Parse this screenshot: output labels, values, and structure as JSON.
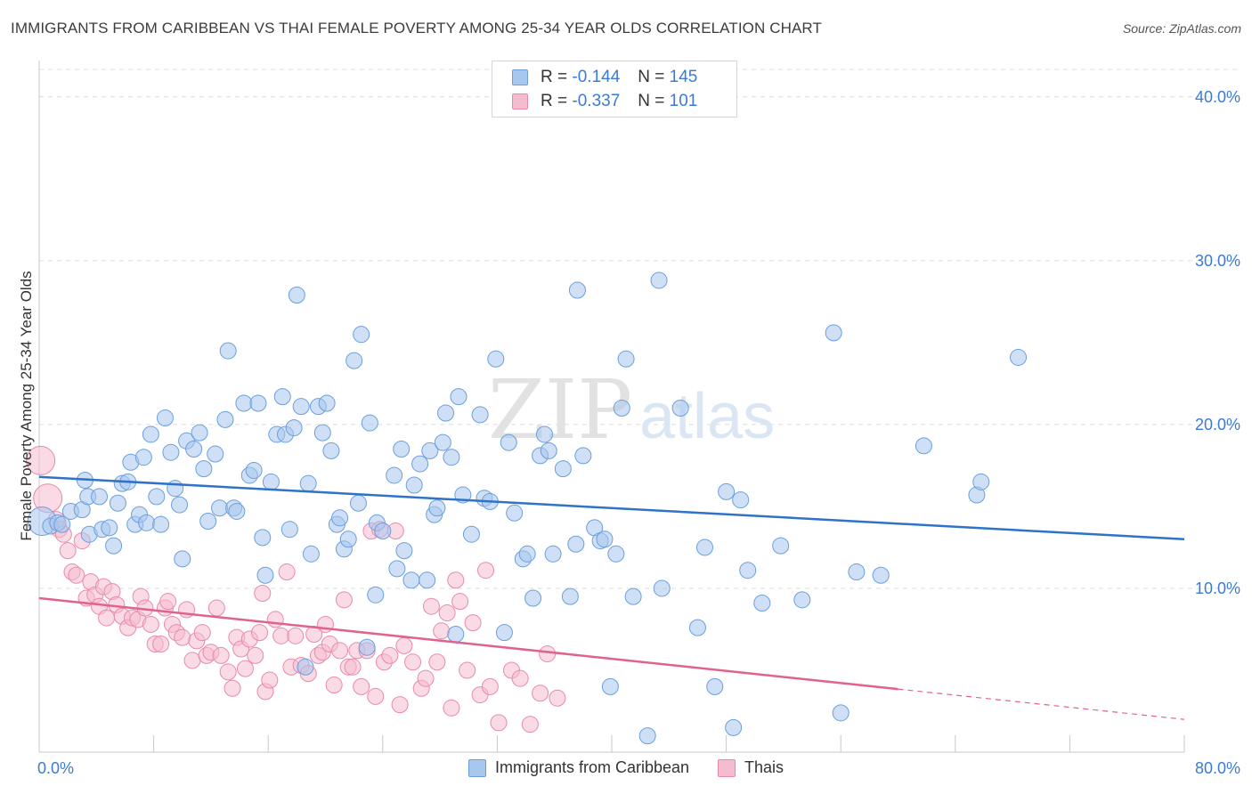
{
  "title": "IMMIGRANTS FROM CARIBBEAN VS THAI FEMALE POVERTY AMONG 25-34 YEAR OLDS CORRELATION CHART",
  "source": "Source: ZipAtlas.com",
  "watermark": {
    "zip": "ZIP",
    "atlas": "atlas"
  },
  "legend_top": [
    {
      "r_label": "R =",
      "r_value": "-0.144",
      "n_label": "N =",
      "n_value": "145"
    },
    {
      "r_label": "R =",
      "r_value": "-0.337",
      "n_label": "N =",
      "n_value": "101"
    }
  ],
  "colors": {
    "blue_fill": "#a7c7ee",
    "blue_stroke": "#6a9fdc",
    "blue_line": "#2f72c9",
    "pink_fill": "#f5bcd0",
    "pink_stroke": "#e88aab",
    "pink_line": "#e0628f",
    "axis_text": "#3a7bd5",
    "grid": "#dcdcdc"
  },
  "chart_data": {
    "type": "scatter",
    "title": "IMMIGRANTS FROM CARIBBEAN VS THAI FEMALE POVERTY AMONG 25-34 YEAR OLDS CORRELATION CHART",
    "xlabel": "",
    "ylabel": "Female Poverty Among 25-34 Year Olds",
    "xlim": [
      0,
      80
    ],
    "ylim": [
      0,
      42
    ],
    "x_tick_labels": [
      "0.0%",
      "80.0%"
    ],
    "y_ticks": [
      10,
      20,
      30,
      40
    ],
    "y_tick_labels": [
      "10.0%",
      "20.0%",
      "30.0%",
      "40.0%"
    ],
    "grid": true,
    "legend_placement": "bottom",
    "series": [
      {
        "name": "Immigrants from Caribbean",
        "r": -0.144,
        "n": 145,
        "trend": {
          "x": [
            0,
            80
          ],
          "y": [
            16.8,
            13.0
          ],
          "dashed_from": null
        },
        "points": [
          [
            0.2,
            14.1
          ],
          [
            0.8,
            13.8
          ],
          [
            1.3,
            14.0
          ],
          [
            1.6,
            13.9
          ],
          [
            2.2,
            14.7
          ],
          [
            3.0,
            14.8
          ],
          [
            3.2,
            16.6
          ],
          [
            3.5,
            13.3
          ],
          [
            3.4,
            15.6
          ],
          [
            4.2,
            15.6
          ],
          [
            4.4,
            13.6
          ],
          [
            4.9,
            13.7
          ],
          [
            5.2,
            12.6
          ],
          [
            5.5,
            15.2
          ],
          [
            5.8,
            16.4
          ],
          [
            6.2,
            16.5
          ],
          [
            6.4,
            17.7
          ],
          [
            6.7,
            13.9
          ],
          [
            7.0,
            14.5
          ],
          [
            7.3,
            18.0
          ],
          [
            7.5,
            14.0
          ],
          [
            7.8,
            19.4
          ],
          [
            8.2,
            15.6
          ],
          [
            8.5,
            13.9
          ],
          [
            8.8,
            20.4
          ],
          [
            9.2,
            18.3
          ],
          [
            9.5,
            16.1
          ],
          [
            9.8,
            15.1
          ],
          [
            10.0,
            11.8
          ],
          [
            10.3,
            19.0
          ],
          [
            10.8,
            18.5
          ],
          [
            11.2,
            19.5
          ],
          [
            11.5,
            17.3
          ],
          [
            11.8,
            14.1
          ],
          [
            12.3,
            18.2
          ],
          [
            12.6,
            14.9
          ],
          [
            13.0,
            20.3
          ],
          [
            13.2,
            24.5
          ],
          [
            13.6,
            14.9
          ],
          [
            13.8,
            14.7
          ],
          [
            14.3,
            21.3
          ],
          [
            14.7,
            16.9
          ],
          [
            15.0,
            17.2
          ],
          [
            15.3,
            21.3
          ],
          [
            15.6,
            13.1
          ],
          [
            15.8,
            10.8
          ],
          [
            16.2,
            16.5
          ],
          [
            16.6,
            19.4
          ],
          [
            17.0,
            21.7
          ],
          [
            17.2,
            19.4
          ],
          [
            17.5,
            13.6
          ],
          [
            17.8,
            19.8
          ],
          [
            18.0,
            27.9
          ],
          [
            18.3,
            21.1
          ],
          [
            18.6,
            5.2
          ],
          [
            18.8,
            16.4
          ],
          [
            19.0,
            12.1
          ],
          [
            19.5,
            21.1
          ],
          [
            19.8,
            19.5
          ],
          [
            20.1,
            21.3
          ],
          [
            20.4,
            18.4
          ],
          [
            20.8,
            13.9
          ],
          [
            21.0,
            14.3
          ],
          [
            21.3,
            12.4
          ],
          [
            21.6,
            13.0
          ],
          [
            22.0,
            23.9
          ],
          [
            22.3,
            15.2
          ],
          [
            22.5,
            25.5
          ],
          [
            22.9,
            6.4
          ],
          [
            23.1,
            20.1
          ],
          [
            23.5,
            9.6
          ],
          [
            23.6,
            14.0
          ],
          [
            24.0,
            13.5
          ],
          [
            24.8,
            16.9
          ],
          [
            25.0,
            11.2
          ],
          [
            25.3,
            18.5
          ],
          [
            25.5,
            12.3
          ],
          [
            26.0,
            10.5
          ],
          [
            26.2,
            16.3
          ],
          [
            26.6,
            17.6
          ],
          [
            27.1,
            10.5
          ],
          [
            27.3,
            18.4
          ],
          [
            27.6,
            14.5
          ],
          [
            27.8,
            14.9
          ],
          [
            28.2,
            18.9
          ],
          [
            28.4,
            20.7
          ],
          [
            28.8,
            18.0
          ],
          [
            29.1,
            7.2
          ],
          [
            29.3,
            21.7
          ],
          [
            29.6,
            15.7
          ],
          [
            30.2,
            13.3
          ],
          [
            30.8,
            20.6
          ],
          [
            31.1,
            15.5
          ],
          [
            31.5,
            15.3
          ],
          [
            31.9,
            24.0
          ],
          [
            32.5,
            7.3
          ],
          [
            32.8,
            18.9
          ],
          [
            33.2,
            14.6
          ],
          [
            33.8,
            11.8
          ],
          [
            34.1,
            12.1
          ],
          [
            34.5,
            9.4
          ],
          [
            35.0,
            18.1
          ],
          [
            35.3,
            19.4
          ],
          [
            35.6,
            18.4
          ],
          [
            35.9,
            12.1
          ],
          [
            36.6,
            17.3
          ],
          [
            37.1,
            9.5
          ],
          [
            37.5,
            12.7
          ],
          [
            37.6,
            28.2
          ],
          [
            38.0,
            18.1
          ],
          [
            38.8,
            13.7
          ],
          [
            39.2,
            12.9
          ],
          [
            39.5,
            13.0
          ],
          [
            39.9,
            4.0
          ],
          [
            40.3,
            12.1
          ],
          [
            40.7,
            21.0
          ],
          [
            41.0,
            24.0
          ],
          [
            41.5,
            9.5
          ],
          [
            42.5,
            1.0
          ],
          [
            43.3,
            28.8
          ],
          [
            43.5,
            10.0
          ],
          [
            44.8,
            21.0
          ],
          [
            46.0,
            7.6
          ],
          [
            46.5,
            12.5
          ],
          [
            47.2,
            4.0
          ],
          [
            48.0,
            15.9
          ],
          [
            48.5,
            1.5
          ],
          [
            49.0,
            15.4
          ],
          [
            49.5,
            11.1
          ],
          [
            50.5,
            9.1
          ],
          [
            51.8,
            12.6
          ],
          [
            53.3,
            9.3
          ],
          [
            55.5,
            25.6
          ],
          [
            56.0,
            2.4
          ],
          [
            57.1,
            11.0
          ],
          [
            58.8,
            10.8
          ],
          [
            61.8,
            18.7
          ],
          [
            65.5,
            15.7
          ],
          [
            65.8,
            16.5
          ],
          [
            68.4,
            24.1
          ]
        ]
      },
      {
        "name": "Thais",
        "r": -0.337,
        "n": 101,
        "trend": {
          "x": [
            0,
            80
          ],
          "y": [
            9.4,
            2.0
          ],
          "dashed_from": 60
        },
        "points": [
          [
            0.1,
            17.8
          ],
          [
            0.6,
            15.5
          ],
          [
            1.2,
            14.2
          ],
          [
            1.4,
            13.6
          ],
          [
            1.7,
            13.3
          ],
          [
            2.0,
            12.3
          ],
          [
            2.3,
            11.0
          ],
          [
            2.6,
            10.8
          ],
          [
            3.0,
            12.9
          ],
          [
            3.3,
            9.4
          ],
          [
            3.6,
            10.4
          ],
          [
            3.9,
            9.6
          ],
          [
            4.2,
            8.9
          ],
          [
            4.5,
            10.1
          ],
          [
            4.7,
            8.2
          ],
          [
            5.1,
            9.8
          ],
          [
            5.4,
            9.0
          ],
          [
            5.8,
            8.3
          ],
          [
            6.2,
            7.6
          ],
          [
            6.5,
            8.2
          ],
          [
            6.9,
            8.1
          ],
          [
            7.1,
            9.5
          ],
          [
            7.4,
            8.8
          ],
          [
            7.8,
            7.8
          ],
          [
            8.1,
            6.6
          ],
          [
            8.5,
            6.6
          ],
          [
            8.8,
            8.8
          ],
          [
            9.0,
            9.2
          ],
          [
            9.3,
            7.8
          ],
          [
            9.6,
            7.3
          ],
          [
            10.0,
            7.0
          ],
          [
            10.3,
            8.7
          ],
          [
            10.7,
            5.6
          ],
          [
            11.0,
            6.8
          ],
          [
            11.4,
            7.3
          ],
          [
            11.7,
            5.9
          ],
          [
            12.0,
            6.1
          ],
          [
            12.4,
            8.8
          ],
          [
            12.7,
            5.9
          ],
          [
            13.2,
            4.9
          ],
          [
            13.5,
            3.9
          ],
          [
            13.8,
            7.0
          ],
          [
            14.1,
            6.3
          ],
          [
            14.4,
            5.1
          ],
          [
            14.7,
            6.9
          ],
          [
            15.1,
            5.9
          ],
          [
            15.4,
            7.3
          ],
          [
            15.6,
            9.7
          ],
          [
            15.8,
            3.7
          ],
          [
            16.1,
            4.4
          ],
          [
            16.5,
            8.1
          ],
          [
            16.9,
            7.1
          ],
          [
            17.3,
            11.0
          ],
          [
            17.6,
            5.2
          ],
          [
            17.9,
            7.1
          ],
          [
            18.3,
            5.3
          ],
          [
            18.8,
            4.8
          ],
          [
            19.2,
            7.2
          ],
          [
            19.5,
            5.9
          ],
          [
            19.8,
            6.1
          ],
          [
            20.0,
            7.8
          ],
          [
            20.3,
            6.6
          ],
          [
            20.6,
            4.1
          ],
          [
            21.0,
            6.2
          ],
          [
            21.3,
            9.3
          ],
          [
            21.6,
            5.2
          ],
          [
            21.9,
            5.2
          ],
          [
            22.2,
            6.2
          ],
          [
            22.5,
            4.0
          ],
          [
            22.9,
            6.2
          ],
          [
            23.2,
            13.5
          ],
          [
            23.5,
            3.4
          ],
          [
            23.8,
            13.6
          ],
          [
            24.1,
            5.5
          ],
          [
            24.5,
            5.9
          ],
          [
            24.9,
            13.5
          ],
          [
            25.2,
            2.9
          ],
          [
            25.5,
            6.5
          ],
          [
            26.1,
            5.5
          ],
          [
            26.7,
            3.9
          ],
          [
            27.0,
            4.5
          ],
          [
            27.4,
            8.9
          ],
          [
            27.8,
            5.5
          ],
          [
            28.1,
            7.4
          ],
          [
            28.5,
            8.5
          ],
          [
            28.8,
            2.7
          ],
          [
            29.1,
            10.5
          ],
          [
            29.4,
            9.2
          ],
          [
            29.9,
            5.0
          ],
          [
            30.3,
            7.9
          ],
          [
            30.8,
            3.5
          ],
          [
            31.2,
            11.1
          ],
          [
            31.5,
            4.0
          ],
          [
            32.1,
            1.8
          ],
          [
            33.0,
            5.0
          ],
          [
            33.6,
            4.5
          ],
          [
            34.3,
            1.7
          ],
          [
            35.0,
            3.6
          ],
          [
            35.5,
            6.0
          ],
          [
            36.2,
            3.3
          ]
        ]
      }
    ]
  }
}
